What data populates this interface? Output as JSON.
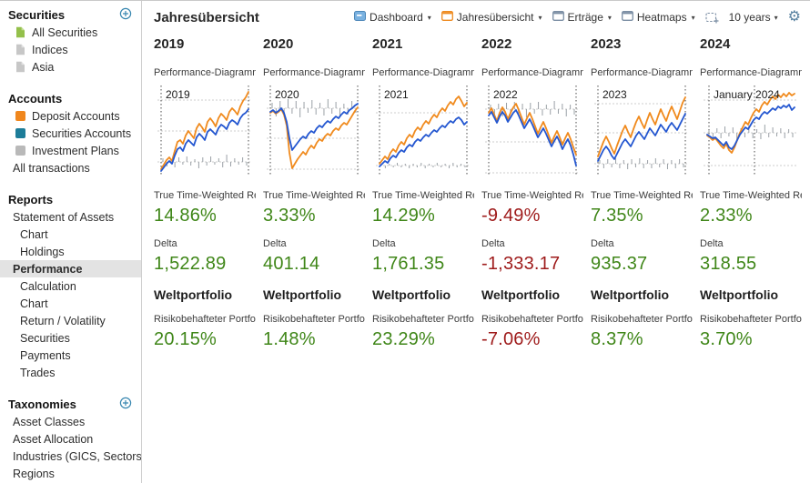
{
  "app": {
    "title": "Jahresübersicht"
  },
  "colors": {
    "green": "#3f8618",
    "red": "#9e1a1a",
    "orange_line": "#f08a1d",
    "blue_line": "#2356d0",
    "bar_gray": "#9aa0a6",
    "accent_blue": "#3887b0"
  },
  "toolbar": {
    "tabs": [
      {
        "label": "Dashboard",
        "icon": "board-blue",
        "active": false
      },
      {
        "label": "Jahresübersicht",
        "icon": "board-orange",
        "active": true
      },
      {
        "label": "Erträge",
        "icon": "board-gray",
        "active": false
      },
      {
        "label": "Heatmaps",
        "icon": "board-gray",
        "active": false
      }
    ],
    "period_label": "10 years",
    "caret": "▾",
    "gear_glyph": "⚙"
  },
  "sidebar": {
    "sections": [
      {
        "title": "Securities",
        "has_add": true,
        "items": [
          {
            "label": "All Securities",
            "icon": "file-green"
          },
          {
            "label": "Indices",
            "icon": "file-gray"
          },
          {
            "label": "Asia",
            "icon": "file-gray"
          }
        ]
      },
      {
        "title": "Accounts",
        "has_add": false,
        "items": [
          {
            "label": "Deposit Accounts",
            "icon": "square-orange"
          },
          {
            "label": "Securities Accounts",
            "icon": "square-teal"
          },
          {
            "label": "Investment Plans",
            "icon": "square-gray"
          },
          {
            "label": "All transactions",
            "indent": 1
          }
        ]
      },
      {
        "title": "Reports",
        "has_add": false,
        "items": [
          {
            "label": "Statement of Assets",
            "indent": 1
          },
          {
            "label": "Chart",
            "indent": 2
          },
          {
            "label": "Holdings",
            "indent": 2
          },
          {
            "label": "Performance",
            "indent": 1,
            "selected": true
          },
          {
            "label": "Calculation",
            "indent": 2
          },
          {
            "label": "Chart",
            "indent": 2
          },
          {
            "label": "Return / Volatility",
            "indent": 2
          },
          {
            "label": "Securities",
            "indent": 2
          },
          {
            "label": "Payments",
            "indent": 2
          },
          {
            "label": "Trades",
            "indent": 2
          }
        ]
      },
      {
        "title": "Taxonomies",
        "has_add": true,
        "items": [
          {
            "label": "Asset Classes",
            "indent": 1
          },
          {
            "label": "Asset Allocation",
            "indent": 1
          },
          {
            "label": "Industries (GICS, Sectors)",
            "indent": 1
          },
          {
            "label": "Regions",
            "indent": 1
          }
        ]
      }
    ]
  },
  "labels": {
    "widget_title": "Performance-Diagramm",
    "ttwror": "True Time-Weighted Re",
    "delta": "Delta",
    "weltportfolio": "Weltportfolio",
    "risk": "Risikobehafteter Portfo"
  },
  "columns": [
    {
      "year": "2019",
      "ttwror": "14.86%",
      "delta": "1,522.89",
      "risk": "20.15%",
      "color": "green"
    },
    {
      "year": "2020",
      "ttwror": "3.33%",
      "delta": "401.14",
      "risk": "1.48%",
      "color": "green"
    },
    {
      "year": "2021",
      "ttwror": "14.29%",
      "delta": "1,761.35",
      "risk": "23.29%",
      "color": "green"
    },
    {
      "year": "2022",
      "ttwror": "-9.49%",
      "delta": "-1,333.17",
      "risk": "-7.06%",
      "color": "red"
    },
    {
      "year": "2023",
      "ttwror": "7.35%",
      "delta": "935.37",
      "risk": "8.37%",
      "color": "green"
    },
    {
      "year": "2024",
      "ttwror": "2.33%",
      "delta": "318.55",
      "risk": "3.70%",
      "color": "green"
    }
  ],
  "chart_data": [
    {
      "type": "line",
      "label": "2019",
      "vlines": [
        8,
        104
      ],
      "gridlines": [
        16,
        50,
        84
      ],
      "bar_base": 84,
      "bars": [
        4,
        -5,
        3,
        -6,
        5,
        -3,
        6,
        -4,
        3,
        -7,
        5,
        -4,
        6,
        -3,
        4,
        -6,
        8,
        -5,
        4,
        -3,
        5,
        -4
      ],
      "orange": [
        92,
        87,
        82,
        79,
        83,
        72,
        62,
        60,
        64,
        55,
        50,
        54,
        58,
        47,
        42,
        46,
        51,
        40,
        36,
        40,
        45,
        36,
        31,
        34,
        38,
        29,
        25,
        28,
        32,
        23,
        17,
        13,
        7
      ],
      "blue": [
        94,
        90,
        86,
        83,
        86,
        77,
        70,
        68,
        72,
        64,
        60,
        63,
        66,
        57,
        53,
        56,
        60,
        51,
        48,
        51,
        54,
        47,
        43,
        45,
        48,
        41,
        38,
        40,
        43,
        36,
        32,
        30,
        26
      ]
    },
    {
      "type": "line",
      "label": "2020",
      "vlines": [
        8,
        104
      ],
      "gridlines": [
        25,
        58,
        92
      ],
      "bar_base": 25,
      "bars": [
        6,
        -9,
        8,
        -7,
        10,
        -6,
        8,
        -10,
        7,
        -5,
        9,
        -7,
        6,
        -8,
        10,
        -6,
        7,
        -9,
        5,
        -7,
        8,
        -5
      ],
      "orange": [
        30,
        28,
        31,
        29,
        26,
        32,
        44,
        74,
        91,
        86,
        81,
        77,
        73,
        76,
        70,
        66,
        69,
        63,
        59,
        61,
        56,
        53,
        55,
        50,
        47,
        49,
        44,
        41,
        43,
        38,
        33,
        28,
        24
      ],
      "blue": [
        29,
        27,
        30,
        28,
        25,
        30,
        40,
        58,
        71,
        67,
        63,
        59,
        56,
        58,
        53,
        50,
        52,
        47,
        44,
        46,
        42,
        39,
        41,
        37,
        34,
        36,
        32,
        29,
        31,
        27,
        25,
        22,
        20
      ]
    },
    {
      "type": "line",
      "label": "2021",
      "vlines": [
        8,
        104
      ],
      "gridlines": [
        30,
        88
      ],
      "bar_base": 88,
      "bars": [
        2,
        -3,
        2,
        -2,
        3,
        -2,
        2,
        -3,
        2,
        -2,
        3,
        -3,
        2,
        -2,
        3,
        -2,
        2,
        -3,
        3,
        -2,
        2,
        -2
      ],
      "orange": [
        86,
        82,
        78,
        81,
        74,
        70,
        73,
        66,
        62,
        65,
        58,
        54,
        57,
        50,
        46,
        49,
        43,
        39,
        42,
        36,
        32,
        35,
        29,
        25,
        28,
        22,
        18,
        21,
        15,
        12,
        17,
        23,
        19
      ],
      "blue": [
        89,
        86,
        83,
        85,
        80,
        77,
        79,
        74,
        71,
        73,
        68,
        65,
        67,
        62,
        59,
        61,
        57,
        54,
        56,
        52,
        49,
        51,
        47,
        44,
        46,
        42,
        39,
        41,
        37,
        35,
        38,
        43,
        40
      ]
    },
    {
      "type": "line",
      "label": "2022",
      "vlines": [
        8,
        104
      ],
      "gridlines": [
        26,
        62,
        96
      ],
      "bar_base": 26,
      "bars": [
        5,
        -7,
        6,
        -8,
        7,
        -5,
        8,
        -6,
        6,
        -9,
        7,
        -5,
        8,
        -7,
        5,
        -6,
        9,
        -5,
        6,
        -8,
        5,
        -6
      ],
      "orange": [
        30,
        25,
        32,
        39,
        30,
        24,
        29,
        37,
        30,
        24,
        20,
        27,
        35,
        43,
        36,
        30,
        37,
        45,
        53,
        46,
        40,
        47,
        55,
        63,
        56,
        50,
        57,
        65,
        58,
        52,
        59,
        68,
        76
      ],
      "blue": [
        33,
        29,
        35,
        41,
        34,
        29,
        33,
        40,
        35,
        30,
        27,
        33,
        40,
        47,
        42,
        37,
        43,
        50,
        57,
        52,
        47,
        53,
        60,
        67,
        61,
        56,
        62,
        70,
        64,
        59,
        66,
        76,
        88
      ]
    },
    {
      "type": "line",
      "label": "2023",
      "vlines": [
        8,
        104
      ],
      "gridlines": [
        20,
        52,
        86
      ],
      "bar_base": 86,
      "bars": [
        4,
        -5,
        5,
        -4,
        6,
        -5,
        4,
        -6,
        5,
        -4,
        6,
        -5,
        4,
        -5,
        6,
        -4,
        5,
        -6,
        4,
        -5,
        5,
        -4
      ],
      "orange": [
        78,
        70,
        62,
        56,
        62,
        69,
        75,
        66,
        58,
        50,
        44,
        51,
        57,
        48,
        40,
        34,
        41,
        47,
        38,
        30,
        37,
        43,
        34,
        26,
        33,
        39,
        30,
        23,
        30,
        37,
        28,
        19,
        13
      ],
      "blue": [
        83,
        77,
        71,
        67,
        71,
        77,
        81,
        75,
        69,
        63,
        59,
        63,
        67,
        61,
        55,
        51,
        55,
        59,
        53,
        47,
        51,
        55,
        49,
        43,
        47,
        51,
        45,
        41,
        45,
        49,
        43,
        37,
        31
      ]
    },
    {
      "type": "line",
      "label": "January 2024",
      "vlines": [
        10,
        60
      ],
      "gridlines": [
        16,
        52,
        88
      ],
      "bar_base": 52,
      "bars": [
        3,
        -8,
        5,
        -6,
        7,
        -4,
        6,
        -9,
        5,
        -5,
        8,
        -6,
        4,
        -7,
        9,
        -5,
        6,
        -4,
        5,
        -6,
        4,
        -5
      ],
      "orange": [
        55,
        57,
        60,
        58,
        62,
        66,
        69,
        64,
        71,
        74,
        68,
        60,
        52,
        46,
        40,
        43,
        36,
        30,
        26,
        29,
        22,
        18,
        21,
        16,
        12,
        15,
        10,
        13,
        9,
        12,
        8,
        11,
        9
      ],
      "blue": [
        54,
        56,
        58,
        57,
        60,
        63,
        66,
        62,
        68,
        70,
        66,
        60,
        54,
        50,
        46,
        48,
        43,
        38,
        35,
        37,
        32,
        29,
        31,
        28,
        25,
        27,
        23,
        25,
        22,
        24,
        21,
        27,
        24
      ]
    }
  ]
}
